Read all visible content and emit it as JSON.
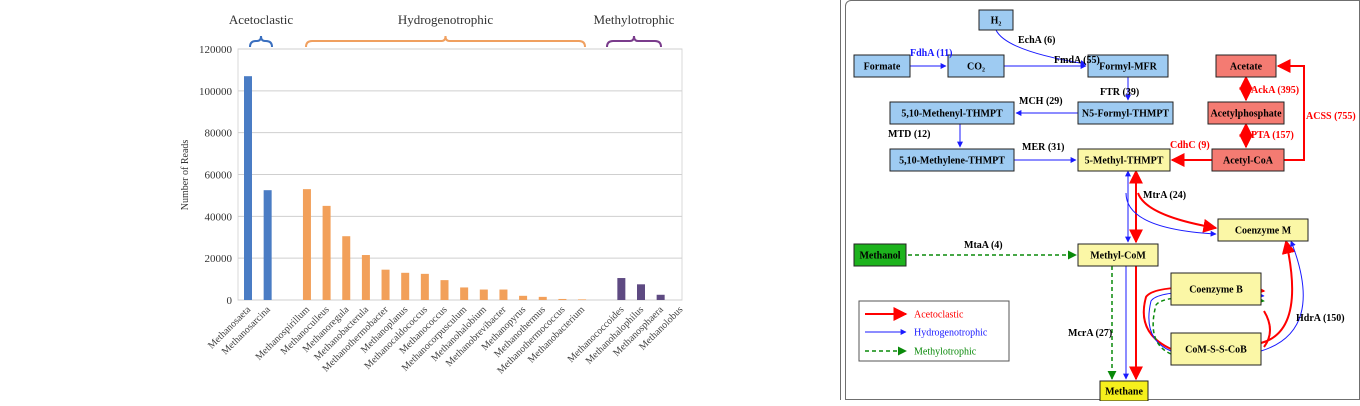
{
  "chart_data": {
    "type": "bar",
    "ylabel": "Number of Reads",
    "ylim": [
      0,
      120000
    ],
    "yticks": [
      0,
      20000,
      40000,
      60000,
      80000,
      100000,
      120000
    ],
    "grid": true,
    "groups": [
      {
        "label": "Acetoclastic",
        "color": "#4a7cc4",
        "bracket_color": "#3a6fbf",
        "categories": [
          "Methanosaeta",
          "Methanosarcina"
        ],
        "values": [
          107000,
          52500
        ]
      },
      {
        "label": "Hydrogenotrophic",
        "color": "#f2a05a",
        "bracket_color": "#f0a060",
        "categories": [
          "Methanospirillum",
          "Methanoculleus",
          "Methanoregula",
          "Methanobacterula",
          "Methanothermobacter",
          "Methanoplanus",
          "Methanocaldococcus",
          "Methanococcus",
          "Methanocorpusculum",
          "Methanohalobium",
          "Methanobrevibacter",
          "Methanopyrus",
          "Methanothermus",
          "Methanothermococcus",
          "Methanobacterium"
        ],
        "values": [
          53000,
          45000,
          30500,
          21500,
          14500,
          13000,
          12500,
          9500,
          6000,
          5000,
          5000,
          2000,
          1500,
          500,
          300
        ]
      },
      {
        "label": "Methylotrophic",
        "color": "#5e4a82",
        "bracket_color": "#7a3c8c",
        "categories": [
          "Methanococcoides",
          "Methanohalophilus",
          "Methanosphaera",
          "Methanolobus"
        ],
        "values": [
          10500,
          7500,
          2500,
          0
        ]
      }
    ]
  },
  "pathway": {
    "nodes": [
      {
        "id": "h2",
        "label": "H₂",
        "color": "#9ecbf2"
      },
      {
        "id": "formate",
        "label": "Formate",
        "color": "#9ecbf2"
      },
      {
        "id": "co2",
        "label": "CO₂",
        "color": "#9ecbf2"
      },
      {
        "id": "formyl_mfr",
        "label": "Formyl-MFR",
        "color": "#9ecbf2"
      },
      {
        "id": "n5_formyl",
        "label": "N5-Formyl-THMPT",
        "color": "#9ecbf2"
      },
      {
        "id": "methenyl",
        "label": "5,10-Methenyl-THMPT",
        "color": "#9ecbf2"
      },
      {
        "id": "methylene",
        "label": "5,10-Methylene-THMPT",
        "color": "#9ecbf2"
      },
      {
        "id": "methyl_thmpt",
        "label": "5-Methyl-THMPT",
        "color": "#fbf7a6"
      },
      {
        "id": "acetate",
        "label": "Acetate",
        "color": "#f47b72"
      },
      {
        "id": "acetylphosphate",
        "label": "Acetylphosphate",
        "color": "#f47b72"
      },
      {
        "id": "acetyl_coa",
        "label": "Acetyl-CoA",
        "color": "#f47b72"
      },
      {
        "id": "coenzyme_m",
        "label": "Coenzyme M",
        "color": "#fbf7a6"
      },
      {
        "id": "methanol",
        "label": "Methanol",
        "color": "#1db31d"
      },
      {
        "id": "methyl_com",
        "label": "Methyl-CoM",
        "color": "#fbf7a6"
      },
      {
        "id": "coenzyme_b",
        "label": "Coenzyme B",
        "color": "#fbf7a6"
      },
      {
        "id": "com_s_s_cob",
        "label": "CoM-S-S-CoB",
        "color": "#fbf7a6"
      },
      {
        "id": "methane",
        "label": "Methane",
        "color": "#f6f01c"
      }
    ],
    "enzymes": {
      "echa": "EchA (6)",
      "fdha": "FdhA (11)",
      "fmda": "FmdA (55)",
      "ftr": "FTR (39)",
      "mch": "MCH (29)",
      "mtd": "MTD (12)",
      "mer": "MER (31)",
      "acka": "AckA (395)",
      "pta": "PTA (157)",
      "acss": "ACSS (755)",
      "cdhc": "CdhC (9)",
      "mtra": "MtrA (24)",
      "mtaa": "MtaA (4)",
      "mcra": "McrA (27)",
      "hdra": "HdrA (150)"
    },
    "colors": {
      "acetoclastic": "#ff0000",
      "hydrogenotrophic": "#1a1aff",
      "methylotrophic": "#0a8a0a",
      "enzyme_hydro": "#1a1aff",
      "enzyme_aceto": "#ff0000",
      "enzyme_neutral": "#000000"
    },
    "legend": [
      {
        "label": "Acetoclastic",
        "pathway": "acetoclastic"
      },
      {
        "label": "Hydrogenotrophic",
        "pathway": "hydrogenotrophic"
      },
      {
        "label": "Methylotrophic",
        "pathway": "methylotrophic"
      }
    ]
  }
}
